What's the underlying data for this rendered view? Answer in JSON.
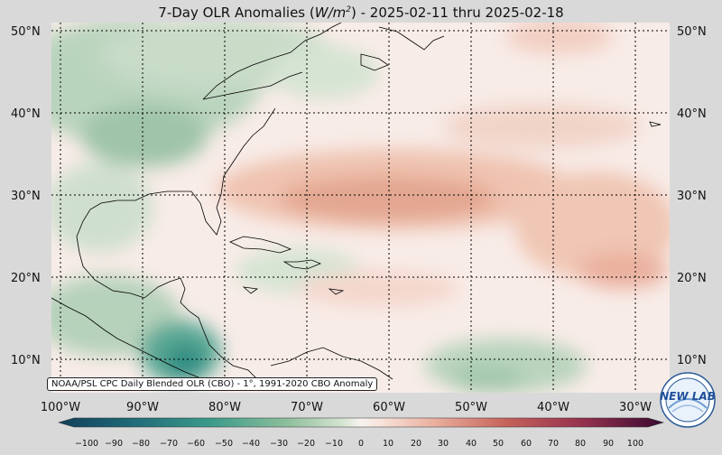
{
  "title": {
    "prefix": "7-Day OLR Anomalies (",
    "unit_main": "W/m",
    "unit_exp": "2",
    "suffix": ") - 2025-02-11 thru 2025-02-18"
  },
  "source_label": "NOAA/PSL CPC Daily Blended OLR (CBO) - 1°, 1991-2020 CBO Anomaly",
  "lat_labels": [
    "50°N",
    "40°N",
    "30°N",
    "20°N",
    "10°N"
  ],
  "lon_labels": [
    "100°W",
    "90°W",
    "80°W",
    "70°W",
    "60°W",
    "50°W",
    "40°W",
    "30°W"
  ],
  "colorbar": {
    "ticks": [
      "−100",
      "−90",
      "−80",
      "−70",
      "−60",
      "−50",
      "−40",
      "−30",
      "−20",
      "−10",
      "0",
      "10",
      "20",
      "30",
      "40",
      "50",
      "60",
      "70",
      "80",
      "90",
      "100"
    ]
  },
  "colors": {
    "negative_strong": "#12405a",
    "negative_mid": "#3a9a8a",
    "negative_weak": "#b9d4bd",
    "neutral": "#f8ece8",
    "positive_weak": "#f0c6b4",
    "positive_mid": "#c6625a",
    "positive_strong": "#5a1242",
    "land_outline": "#000000"
  },
  "logo": {
    "text": "NEW LAB",
    "icon": "psl-logo-icon"
  }
}
